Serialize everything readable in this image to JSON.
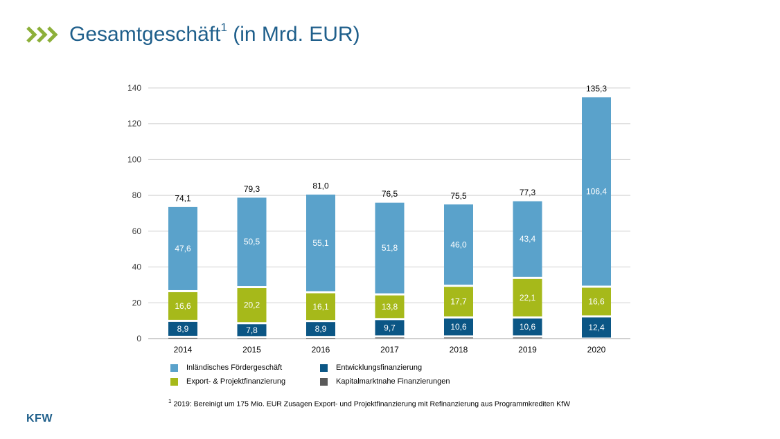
{
  "header": {
    "title": "Gesamtgeschäft",
    "title_sup": "1",
    "title_suffix": "(in Mrd. EUR)",
    "chevron_icon": "triple-chevron-icon"
  },
  "colors": {
    "title": "#1f5f8b",
    "chevron": "#8db03a",
    "inlaendisch": "#5aa2cb",
    "export": "#a6b91a",
    "entwicklung": "#0b5685",
    "kapitalmarkt": "#5a5a5a",
    "grid": "#d0d0d0"
  },
  "chart_data": {
    "type": "bar",
    "stacked": true,
    "title": "Gesamtgeschäft (in Mrd. EUR)",
    "categories": [
      "2014",
      "2015",
      "2016",
      "2017",
      "2018",
      "2019",
      "2020"
    ],
    "ylim": [
      0,
      140
    ],
    "yticks": [
      0,
      20,
      40,
      60,
      80,
      100,
      120,
      140
    ],
    "grid": true,
    "series": [
      {
        "name": "Kapitalmarktnahe Finanzierungen",
        "key": "kapitalmarkt",
        "values": [
          1.0,
          0.8,
          0.9,
          1.2,
          1.2,
          1.2,
          0.0
        ],
        "labels": [
          "",
          "",
          "",
          "",
          "",
          "",
          ""
        ]
      },
      {
        "name": "Entwicklungsfinanzierung",
        "key": "entwicklung",
        "values": [
          8.9,
          7.8,
          8.9,
          9.7,
          10.6,
          10.6,
          12.4
        ],
        "labels": [
          "8,9",
          "7,8",
          "8,9",
          "9,7",
          "10,6",
          "10,6",
          "12,4"
        ]
      },
      {
        "name": "Export- & Projektfinanzierung",
        "key": "export",
        "values": [
          16.6,
          20.2,
          16.1,
          13.8,
          17.7,
          22.1,
          16.6
        ],
        "labels": [
          "16,6",
          "20,2",
          "16,1",
          "13,8",
          "17,7",
          "22,1",
          "16,6"
        ]
      },
      {
        "name": "Inländisches Fördergeschäft",
        "key": "inlaendisch",
        "values": [
          47.6,
          50.5,
          55.1,
          51.8,
          46.0,
          43.4,
          106.4
        ],
        "labels": [
          "47,6",
          "50,5",
          "55,1",
          "51,8",
          "46,0",
          "43,4",
          "106,4"
        ]
      }
    ],
    "totals": [
      74.1,
      79.3,
      81.0,
      76.5,
      75.5,
      77.3,
      135.3
    ],
    "total_labels": [
      "74,1",
      "79,3",
      "81,0",
      "76,5",
      "75,5",
      "77,3",
      "135,3"
    ],
    "legend_position": "bottom"
  },
  "legend": {
    "items": [
      {
        "label": "Inländisches Fördergeschäft",
        "key": "inlaendisch"
      },
      {
        "label": "Entwicklungsfinanzierung",
        "key": "entwicklung"
      },
      {
        "label": "Export- & Projektfinanzierung",
        "key": "export"
      },
      {
        "label": "Kapitalmarktnahe Finanzierungen",
        "key": "kapitalmarkt"
      }
    ]
  },
  "footnote": {
    "marker": "1",
    "text": "2019: Bereinigt um 175 Mio. EUR Zusagen Export- und Projektfinanzierung mit Refinanzierung aus Programmkrediten KfW"
  },
  "logo": {
    "text": "KFW"
  }
}
